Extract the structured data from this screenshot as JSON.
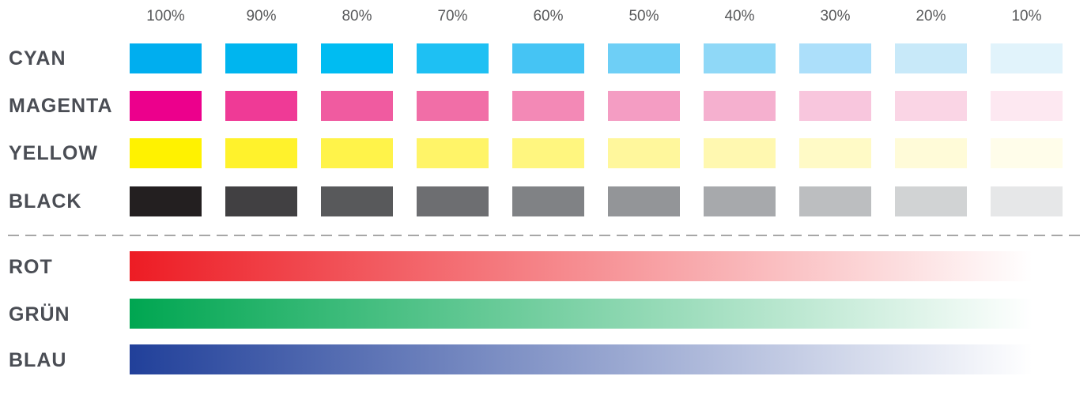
{
  "percent_labels": [
    "100%",
    "90%",
    "80%",
    "70%",
    "60%",
    "50%",
    "40%",
    "30%",
    "20%",
    "10%"
  ],
  "process_colors": [
    {
      "name": "CYAN",
      "swatches": [
        "#00aeef",
        "#00b5ef",
        "#00bcf2",
        "#1ec0f3",
        "#45c4f4",
        "#6ecff6",
        "#8fd8f7",
        "#acdffa",
        "#c8e9f9",
        "#e1f3fb"
      ]
    },
    {
      "name": "MAGENTA",
      "swatches": [
        "#ec008c",
        "#ef3a96",
        "#f05ba0",
        "#f16ea7",
        "#f389b6",
        "#f49dc3",
        "#f5b0cf",
        "#f8c6dd",
        "#fad5e5",
        "#fde8f1"
      ]
    },
    {
      "name": "YELLOW",
      "swatches": [
        "#fff200",
        "#fff22c",
        "#fff34a",
        "#fff468",
        "#fff67f",
        "#fff79c",
        "#fff8b0",
        "#fffac6",
        "#fffbd8",
        "#fffdea"
      ]
    },
    {
      "name": "BLACK",
      "swatches": [
        "#231f20",
        "#414042",
        "#58595b",
        "#6d6e71",
        "#808285",
        "#939598",
        "#a7a9ac",
        "#bcbec0",
        "#d1d3d4",
        "#e6e7e8"
      ]
    }
  ],
  "rgb_gradients": [
    {
      "name": "ROT",
      "color_start": "#ed1c24",
      "color_end": "#ffffff"
    },
    {
      "name": "GRÜN",
      "color_start": "#00a651",
      "color_end": "#ffffff"
    },
    {
      "name": "BLAU",
      "color_start": "#21409a",
      "color_end": "#ffffff"
    }
  ]
}
